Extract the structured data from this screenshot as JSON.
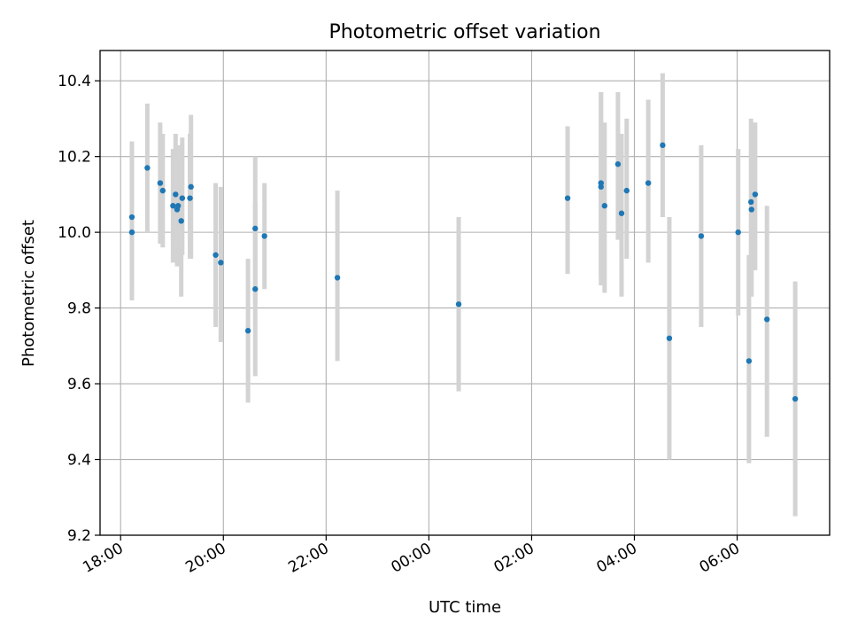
{
  "chart_data": {
    "type": "scatter",
    "title": "Photometric offset variation",
    "xlabel": "UTC time",
    "ylabel": "Photometric offset",
    "x_unit": "hours (UTC, continuing past midnight)",
    "xlim": [
      17.6,
      31.8
    ],
    "ylim": [
      9.2,
      10.48
    ],
    "grid": true,
    "x_ticks": [
      {
        "value": 18,
        "label": "18:00"
      },
      {
        "value": 20,
        "label": "20:00"
      },
      {
        "value": 22,
        "label": "22:00"
      },
      {
        "value": 24,
        "label": "00:00"
      },
      {
        "value": 26,
        "label": "02:00"
      },
      {
        "value": 28,
        "label": "04:00"
      },
      {
        "value": 30,
        "label": "06:00"
      }
    ],
    "y_ticks": [
      {
        "value": 9.2,
        "label": "9.2"
      },
      {
        "value": 9.4,
        "label": "9.4"
      },
      {
        "value": 9.6,
        "label": "9.6"
      },
      {
        "value": 9.8,
        "label": "9.8"
      },
      {
        "value": 10.0,
        "label": "10.0"
      },
      {
        "value": 10.2,
        "label": "10.2"
      },
      {
        "value": 10.4,
        "label": "10.4"
      }
    ],
    "colors": {
      "point": "#1f77b4",
      "errorbar": "#d3d3d3",
      "grid": "#b0b0b0",
      "axes": "#000000"
    },
    "points": [
      {
        "x": 18.22,
        "y": 10.04,
        "low": 9.82,
        "high": 10.24
      },
      {
        "x": 18.22,
        "y": 10.0,
        "low": 9.84,
        "high": 10.2
      },
      {
        "x": 18.52,
        "y": 10.17,
        "low": 10.0,
        "high": 10.34
      },
      {
        "x": 18.77,
        "y": 10.13,
        "low": 9.97,
        "high": 10.29
      },
      {
        "x": 18.82,
        "y": 10.11,
        "low": 9.96,
        "high": 10.26
      },
      {
        "x": 19.02,
        "y": 10.07,
        "low": 9.92,
        "high": 10.22
      },
      {
        "x": 19.07,
        "y": 10.1,
        "low": 9.95,
        "high": 10.26
      },
      {
        "x": 19.1,
        "y": 10.06,
        "low": 9.91,
        "high": 10.22
      },
      {
        "x": 19.12,
        "y": 10.07,
        "low": 9.92,
        "high": 10.23
      },
      {
        "x": 19.18,
        "y": 10.03,
        "low": 9.83,
        "high": 10.23
      },
      {
        "x": 19.2,
        "y": 10.09,
        "low": 9.94,
        "high": 10.25
      },
      {
        "x": 19.35,
        "y": 10.09,
        "low": 9.93,
        "high": 10.26
      },
      {
        "x": 19.37,
        "y": 10.12,
        "low": 9.93,
        "high": 10.31
      },
      {
        "x": 19.85,
        "y": 9.94,
        "low": 9.75,
        "high": 10.13
      },
      {
        "x": 19.95,
        "y": 9.92,
        "low": 9.71,
        "high": 10.12
      },
      {
        "x": 20.48,
        "y": 9.74,
        "low": 9.55,
        "high": 9.93
      },
      {
        "x": 20.62,
        "y": 10.01,
        "low": 9.81,
        "high": 10.2
      },
      {
        "x": 20.62,
        "y": 9.85,
        "low": 9.62,
        "high": 10.08
      },
      {
        "x": 20.8,
        "y": 9.99,
        "low": 9.85,
        "high": 10.13
      },
      {
        "x": 22.22,
        "y": 9.88,
        "low": 9.66,
        "high": 10.11
      },
      {
        "x": 24.58,
        "y": 9.81,
        "low": 9.58,
        "high": 10.04
      },
      {
        "x": 26.7,
        "y": 10.09,
        "low": 9.89,
        "high": 10.28
      },
      {
        "x": 27.35,
        "y": 10.13,
        "low": 9.88,
        "high": 10.37
      },
      {
        "x": 27.35,
        "y": 10.12,
        "low": 9.86,
        "high": 10.37
      },
      {
        "x": 27.42,
        "y": 10.07,
        "low": 9.84,
        "high": 10.29
      },
      {
        "x": 27.68,
        "y": 10.18,
        "low": 9.98,
        "high": 10.37
      },
      {
        "x": 27.75,
        "y": 10.05,
        "low": 9.83,
        "high": 10.26
      },
      {
        "x": 27.85,
        "y": 10.11,
        "low": 9.93,
        "high": 10.3
      },
      {
        "x": 28.27,
        "y": 10.13,
        "low": 9.92,
        "high": 10.35
      },
      {
        "x": 28.55,
        "y": 10.23,
        "low": 10.04,
        "high": 10.42
      },
      {
        "x": 28.68,
        "y": 9.72,
        "low": 9.4,
        "high": 10.04
      },
      {
        "x": 29.3,
        "y": 9.99,
        "low": 9.75,
        "high": 10.23
      },
      {
        "x": 30.02,
        "y": 10.0,
        "low": 9.78,
        "high": 10.22
      },
      {
        "x": 30.23,
        "y": 9.66,
        "low": 9.39,
        "high": 9.94
      },
      {
        "x": 30.27,
        "y": 10.08,
        "low": 9.86,
        "high": 10.3
      },
      {
        "x": 30.28,
        "y": 10.06,
        "low": 9.83,
        "high": 10.29
      },
      {
        "x": 30.35,
        "y": 10.1,
        "low": 9.9,
        "high": 10.29
      },
      {
        "x": 30.58,
        "y": 9.77,
        "low": 9.46,
        "high": 10.07
      },
      {
        "x": 31.13,
        "y": 9.56,
        "low": 9.25,
        "high": 9.87
      }
    ]
  }
}
